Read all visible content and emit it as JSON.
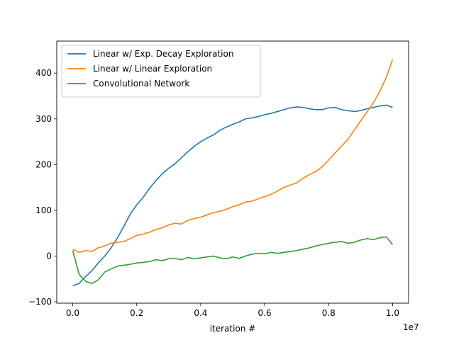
{
  "chart_data": {
    "type": "line",
    "title": "",
    "xlabel": "iteration #",
    "ylabel": "",
    "x_offset_label": "1e7",
    "xlim": [
      -0.05,
      1.05
    ],
    "ylim": [
      -103,
      470
    ],
    "x_ticks": [
      0.0,
      0.2,
      0.4,
      0.6,
      0.8,
      1.0
    ],
    "x_tick_labels": [
      "0.0",
      "0.2",
      "0.4",
      "0.6",
      "0.8",
      "1.0"
    ],
    "y_ticks": [
      -100,
      0,
      100,
      200,
      300,
      400
    ],
    "y_tick_labels": [
      "−100",
      "0",
      "100",
      "200",
      "300",
      "400"
    ],
    "grid": false,
    "legend_position": "top-left",
    "series": [
      {
        "name": "Linear w/ Exp. Decay Exploration",
        "color": "#1f77b4",
        "x": [
          0.0,
          0.02,
          0.04,
          0.06,
          0.08,
          0.1,
          0.12,
          0.14,
          0.16,
          0.18,
          0.2,
          0.22,
          0.24,
          0.26,
          0.28,
          0.3,
          0.32,
          0.34,
          0.36,
          0.38,
          0.4,
          0.42,
          0.44,
          0.46,
          0.48,
          0.5,
          0.52,
          0.54,
          0.56,
          0.58,
          0.6,
          0.62,
          0.64,
          0.66,
          0.68,
          0.7,
          0.72,
          0.74,
          0.76,
          0.78,
          0.8,
          0.82,
          0.84,
          0.86,
          0.88,
          0.9,
          0.92,
          0.94,
          0.96,
          0.98,
          1.0
        ],
        "values": [
          -65,
          -60,
          -45,
          -32,
          -15,
          0,
          18,
          40,
          65,
          92,
          112,
          128,
          148,
          165,
          180,
          192,
          202,
          215,
          228,
          240,
          250,
          258,
          265,
          275,
          282,
          288,
          293,
          300,
          302,
          305,
          309,
          312,
          316,
          320,
          324,
          326,
          325,
          322,
          320,
          320,
          324,
          325,
          320,
          318,
          316,
          318,
          322,
          325,
          328,
          330,
          325
        ]
      },
      {
        "name": "Linear w/ Linear Exploration",
        "color": "#ff7f0e",
        "x": [
          0.0,
          0.02,
          0.04,
          0.06,
          0.08,
          0.1,
          0.12,
          0.14,
          0.16,
          0.18,
          0.2,
          0.22,
          0.24,
          0.26,
          0.28,
          0.3,
          0.32,
          0.34,
          0.36,
          0.38,
          0.4,
          0.42,
          0.44,
          0.46,
          0.48,
          0.5,
          0.52,
          0.54,
          0.56,
          0.58,
          0.6,
          0.62,
          0.64,
          0.66,
          0.68,
          0.7,
          0.72,
          0.74,
          0.76,
          0.78,
          0.8,
          0.82,
          0.84,
          0.86,
          0.88,
          0.9,
          0.92,
          0.94,
          0.96,
          0.98,
          1.0
        ],
        "values": [
          15,
          8,
          12,
          10,
          18,
          22,
          28,
          30,
          32,
          38,
          45,
          48,
          52,
          58,
          62,
          68,
          72,
          70,
          78,
          82,
          85,
          90,
          95,
          98,
          102,
          108,
          112,
          118,
          120,
          125,
          130,
          135,
          142,
          150,
          155,
          160,
          170,
          178,
          185,
          195,
          210,
          225,
          240,
          255,
          275,
          295,
          315,
          335,
          360,
          390,
          430
        ]
      },
      {
        "name": "Convolutional Network",
        "color": "#2ca02c",
        "x": [
          0.0,
          0.02,
          0.04,
          0.06,
          0.08,
          0.1,
          0.12,
          0.14,
          0.16,
          0.18,
          0.2,
          0.22,
          0.24,
          0.26,
          0.28,
          0.3,
          0.32,
          0.34,
          0.36,
          0.38,
          0.4,
          0.42,
          0.44,
          0.46,
          0.48,
          0.5,
          0.52,
          0.54,
          0.56,
          0.58,
          0.6,
          0.62,
          0.64,
          0.66,
          0.68,
          0.7,
          0.72,
          0.74,
          0.76,
          0.78,
          0.8,
          0.82,
          0.84,
          0.86,
          0.88,
          0.9,
          0.92,
          0.94,
          0.96,
          0.98,
          1.0
        ],
        "values": [
          12,
          -40,
          -55,
          -60,
          -52,
          -35,
          -28,
          -22,
          -20,
          -18,
          -15,
          -14,
          -12,
          -8,
          -10,
          -6,
          -5,
          -8,
          -3,
          -6,
          -4,
          -2,
          0,
          -4,
          -6,
          -2,
          -5,
          0,
          4,
          6,
          5,
          8,
          6,
          8,
          10,
          12,
          15,
          18,
          22,
          25,
          28,
          30,
          32,
          28,
          30,
          35,
          38,
          36,
          40,
          42,
          25
        ]
      }
    ]
  }
}
